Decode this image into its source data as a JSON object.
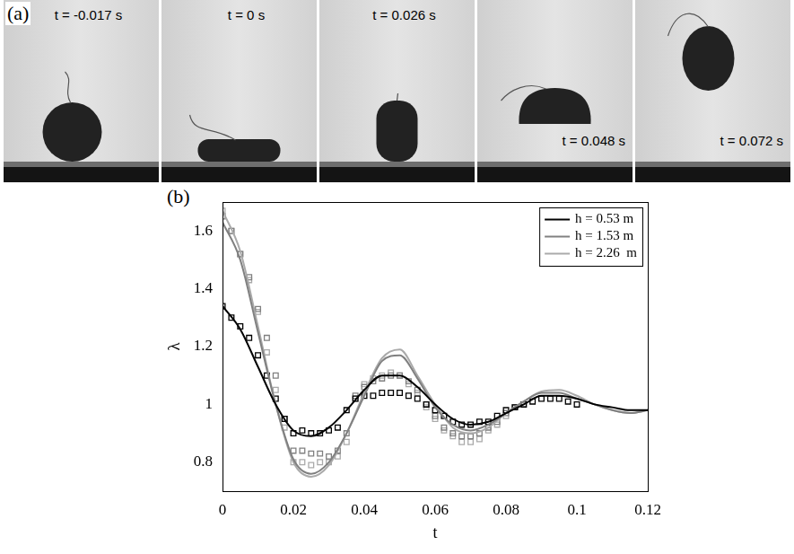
{
  "panel_a": {
    "label": "(a)",
    "frames": [
      "t = -0.017 s",
      "t = 0 s",
      "t = 0.026 s",
      "t = 0.048 s",
      "t = 0.072 s"
    ]
  },
  "chart_data": {
    "type": "line",
    "panel_label": "(b)",
    "x_label": "t",
    "y_label": "λ",
    "xlim": [
      0,
      0.12
    ],
    "xticks": [
      0,
      0.02,
      0.04,
      0.06,
      0.08,
      0.1,
      0.12
    ],
    "ylim": [
      0.7,
      1.7
    ],
    "yticks": [
      0.8,
      1,
      1.2,
      1.4,
      1.6
    ],
    "grid": false,
    "legend": "top-right",
    "x": [
      0,
      0.005,
      0.01,
      0.015,
      0.02,
      0.025,
      0.03,
      0.035,
      0.04,
      0.045,
      0.05,
      0.055,
      0.06,
      0.065,
      0.07,
      0.075,
      0.08,
      0.085,
      0.09,
      0.095,
      0.1,
      0.105,
      0.11,
      0.115,
      0.12
    ],
    "series": [
      {
        "name": "h = 0.53 m",
        "color": "#000000",
        "line_style": "solid",
        "values": [
          1.34,
          1.26,
          1.13,
          1.0,
          0.91,
          0.89,
          0.92,
          0.98,
          1.05,
          1.1,
          1.1,
          1.06,
          1.0,
          0.95,
          0.93,
          0.94,
          0.97,
          1.0,
          1.03,
          1.03,
          1.02,
          1.0,
          0.99,
          0.98,
          0.98
        ],
        "measured": {
          "marker": "square",
          "x": [
            0,
            0.0025,
            0.005,
            0.0075,
            0.01,
            0.0125,
            0.015,
            0.0175,
            0.02,
            0.0225,
            0.025,
            0.0275,
            0.03,
            0.0325,
            0.035,
            0.0375,
            0.04,
            0.0425,
            0.045,
            0.0475,
            0.05,
            0.0525,
            0.055,
            0.0575,
            0.06,
            0.0625,
            0.065,
            0.0675,
            0.07,
            0.0725,
            0.075,
            0.0775,
            0.08,
            0.0825,
            0.085,
            0.0875,
            0.09,
            0.0925,
            0.095,
            0.0975,
            0.1
          ],
          "values": [
            1.34,
            1.3,
            1.27,
            1.23,
            1.17,
            1.1,
            1.02,
            0.95,
            0.9,
            0.91,
            0.9,
            0.9,
            0.91,
            0.92,
            0.98,
            1.02,
            1.03,
            1.03,
            1.04,
            1.04,
            1.04,
            1.03,
            1.02,
            1.0,
            0.98,
            0.96,
            0.94,
            0.93,
            0.93,
            0.94,
            0.94,
            0.96,
            0.98,
            0.99,
            1.0,
            1.01,
            1.02,
            1.02,
            1.02,
            1.01,
            1.0
          ]
        }
      },
      {
        "name": "h = 1.53 m",
        "color": "#808080",
        "line_style": "solid",
        "values": [
          1.63,
          1.5,
          1.25,
          1.0,
          0.81,
          0.76,
          0.8,
          0.9,
          1.03,
          1.15,
          1.17,
          1.09,
          0.99,
          0.93,
          0.91,
          0.93,
          0.97,
          1.01,
          1.04,
          1.04,
          1.02,
          1.0,
          0.98,
          0.97,
          0.98
        ],
        "measured": {
          "marker": "square",
          "x": [
            0,
            0.0025,
            0.005,
            0.0075,
            0.01,
            0.0125,
            0.015,
            0.0175,
            0.02,
            0.0225,
            0.025,
            0.0275,
            0.03,
            0.0325,
            0.035,
            0.0375,
            0.04,
            0.0425,
            0.045,
            0.0475,
            0.05,
            0.0525,
            0.055,
            0.0575,
            0.06,
            0.0625,
            0.065,
            0.0675,
            0.07,
            0.0725,
            0.075,
            0.0775,
            0.08,
            0.0825,
            0.085
          ],
          "values": [
            1.65,
            1.6,
            1.52,
            1.44,
            1.33,
            1.23,
            1.1,
            0.95,
            0.84,
            0.84,
            0.83,
            0.83,
            0.82,
            0.84,
            0.9,
            1.03,
            1.06,
            1.08,
            1.09,
            1.1,
            1.1,
            1.08,
            1.05,
            1.0,
            0.96,
            0.92,
            0.9,
            0.89,
            0.89,
            0.9,
            0.92,
            0.94,
            0.97,
            0.99,
            1.0
          ]
        }
      },
      {
        "name": "h = 2.26  m",
        "color": "#aaaaaa",
        "line_style": "solid",
        "values": [
          1.67,
          1.53,
          1.27,
          1.0,
          0.8,
          0.75,
          0.79,
          0.9,
          1.04,
          1.16,
          1.19,
          1.1,
          1.0,
          0.92,
          0.9,
          0.92,
          0.97,
          1.01,
          1.045,
          1.05,
          1.03,
          1.0,
          0.98,
          0.97,
          0.98
        ],
        "measured": {
          "marker": "square",
          "x": [
            0,
            0.0025,
            0.005,
            0.0075,
            0.01,
            0.0125,
            0.015,
            0.0175,
            0.02,
            0.0225,
            0.025,
            0.0275,
            0.03,
            0.0325,
            0.035,
            0.0375,
            0.04,
            0.0425,
            0.045,
            0.0475,
            0.05,
            0.0525,
            0.055,
            0.0575,
            0.06,
            0.0625,
            0.065,
            0.0675,
            0.07,
            0.0725,
            0.075,
            0.0775,
            0.08,
            0.0825
          ],
          "values": [
            1.67,
            1.6,
            1.52,
            1.43,
            1.32,
            1.18,
            1.05,
            0.92,
            0.8,
            0.8,
            0.79,
            0.8,
            0.8,
            0.82,
            0.87,
            1.02,
            1.07,
            1.09,
            1.1,
            1.11,
            1.1,
            1.07,
            1.04,
            0.99,
            0.95,
            0.91,
            0.89,
            0.87,
            0.87,
            0.88,
            0.91,
            0.93,
            0.96,
            0.99
          ]
        }
      }
    ]
  }
}
